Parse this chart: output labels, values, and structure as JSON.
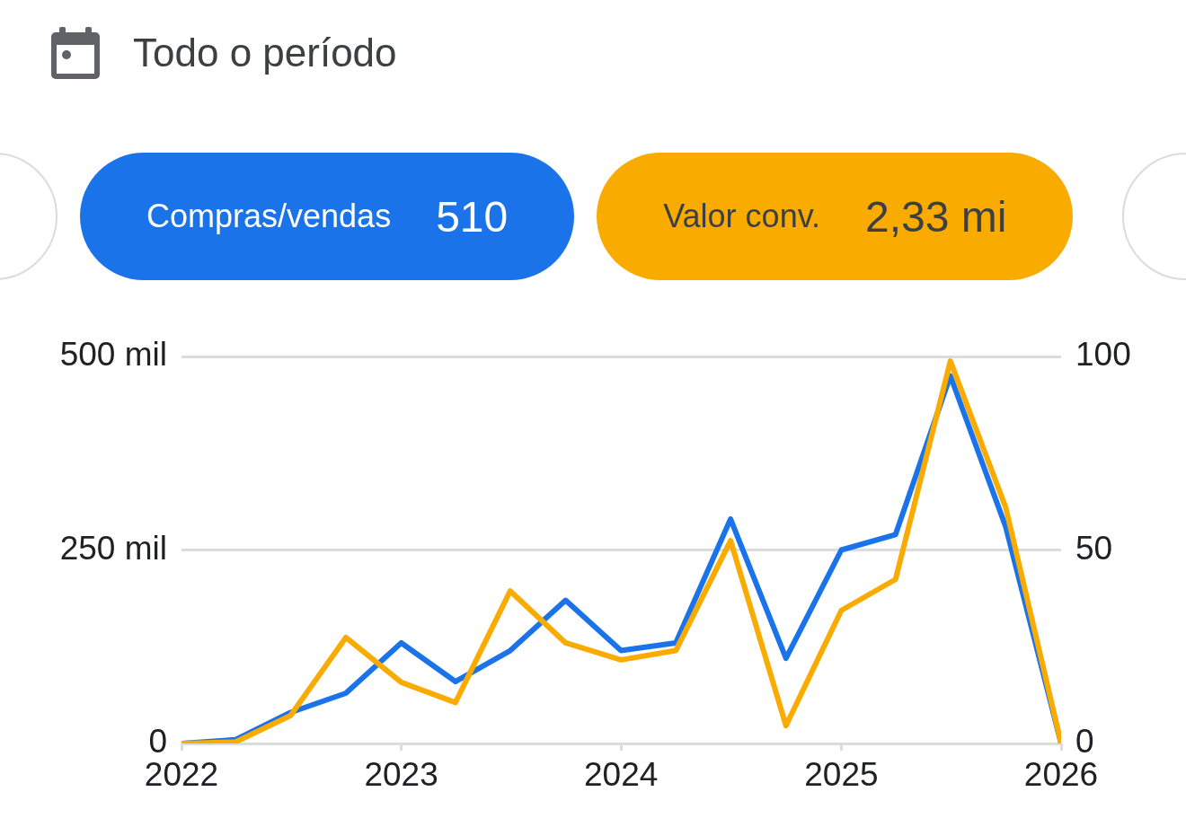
{
  "chart_data": {
    "type": "line",
    "title": "Todo o período",
    "x": [
      "2022-01",
      "2022-04",
      "2022-07",
      "2022-10",
      "2023-01",
      "2023-04",
      "2023-07",
      "2023-10",
      "2024-01",
      "2024-04",
      "2024-07",
      "2024-10",
      "2025-01",
      "2025-04",
      "2025-07",
      "2025-10",
      "2026-01"
    ],
    "series": [
      {
        "name": "Compras/vendas",
        "color": "#1a73e8",
        "axis": "y2",
        "values": [
          0,
          1,
          8,
          13,
          26,
          16,
          24,
          37,
          24,
          26,
          58,
          22,
          50,
          54,
          95,
          56,
          0
        ]
      },
      {
        "name": "Valor conv.",
        "color": "#f9ab00",
        "values": [
          0,
          2,
          36,
          137,
          79,
          53,
          197,
          130,
          108,
          120,
          262,
          23,
          172,
          212,
          494,
          305,
          0
        ]
      }
    ],
    "xlim": [
      "2022-01",
      "2026-01"
    ],
    "xticks": [
      "2022",
      "2023",
      "2024",
      "2025",
      "2026"
    ],
    "ylim": [
      0,
      500
    ],
    "yticks": [
      0,
      {
        "value": 250,
        "label": "250 mil"
      },
      {
        "value": 500,
        "label": "500 mil"
      }
    ],
    "y2lim": [
      0,
      100
    ],
    "y2ticks": [
      0,
      50,
      100
    ],
    "grid": "y",
    "legend": "top",
    "marker": "none",
    "annotations": [
      "510",
      "2,33 mi"
    ]
  }
}
